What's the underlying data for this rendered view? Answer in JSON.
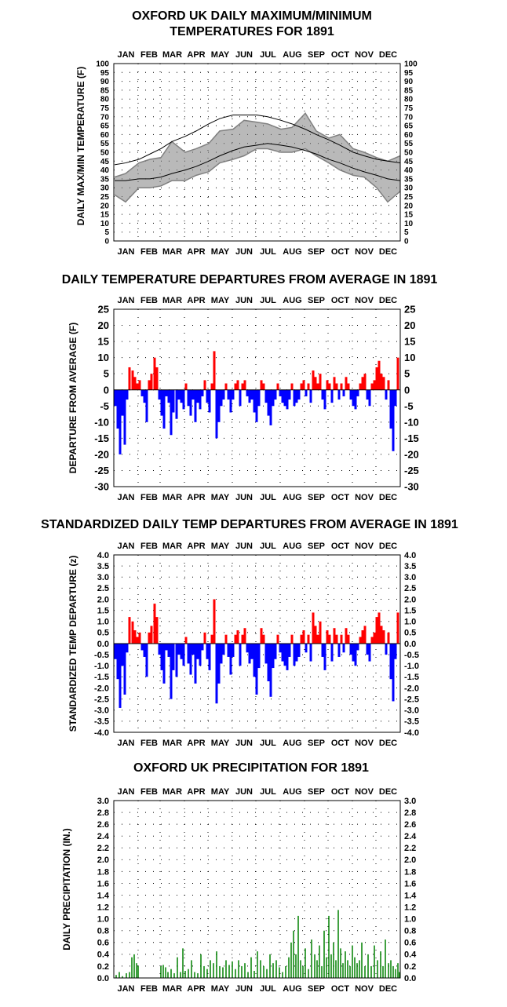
{
  "chart_data": [
    {
      "type": "line",
      "title": "OXFORD UK DAILY MAXIMUM/MINIMUM",
      "subtitle": "TEMPERATURES FOR 1891",
      "ylabel": "DAILY MAX/MIN TEMPERATURE (F)",
      "months": [
        "JAN",
        "FEB",
        "MAR",
        "APR",
        "MAY",
        "JUN",
        "JUL",
        "AUG",
        "SEP",
        "OCT",
        "NOV",
        "DEC"
      ],
      "ylim": [
        0,
        100
      ],
      "ytick_labels": [
        "0",
        "5",
        "10",
        "15",
        "20",
        "25",
        "30",
        "35",
        "40",
        "45",
        "50",
        "55",
        "60",
        "65",
        "70",
        "75",
        "80",
        "85",
        "90",
        "95",
        "100"
      ],
      "colors": {
        "observed": "#808080",
        "normals": "#000000"
      },
      "x": [
        1,
        15,
        32,
        46,
        60,
        74,
        91,
        105,
        121,
        135,
        152,
        166,
        182,
        196,
        213,
        227,
        244,
        258,
        274,
        288,
        305,
        319,
        335,
        349,
        365
      ],
      "series": [
        {
          "role": "observed_max",
          "values": [
            36,
            38,
            44,
            46,
            47,
            56,
            50,
            52,
            55,
            62,
            63,
            68,
            67,
            66,
            63,
            64,
            72,
            62,
            58,
            60,
            52,
            50,
            47,
            45,
            48
          ]
        },
        {
          "role": "observed_min",
          "values": [
            26,
            22,
            30,
            30,
            31,
            34,
            34,
            37,
            39,
            44,
            46,
            48,
            52,
            52,
            50,
            50,
            52,
            48,
            44,
            40,
            37,
            36,
            30,
            22,
            28
          ]
        },
        {
          "role": "normal_max",
          "values": [
            43,
            44,
            46,
            49,
            52,
            56,
            59,
            62,
            66,
            69,
            71,
            71,
            71,
            70,
            68,
            66,
            63,
            60,
            57,
            54,
            50,
            48,
            46,
            45,
            44
          ]
        },
        {
          "role": "normal_min",
          "values": [
            34,
            34,
            35,
            35,
            36,
            38,
            40,
            42,
            45,
            48,
            51,
            53,
            54,
            55,
            54,
            53,
            51,
            49,
            46,
            44,
            41,
            39,
            37,
            35,
            34
          ]
        }
      ]
    },
    {
      "type": "bar",
      "title": "DAILY TEMPERATURE DEPARTURES FROM AVERAGE IN 1891",
      "ylabel": "DEPARTURE FROM AVERAGE (F)",
      "months": [
        "JAN",
        "FEB",
        "MAR",
        "APR",
        "MAY",
        "JUN",
        "JUL",
        "AUG",
        "SEP",
        "OCT",
        "NOV",
        "DEC"
      ],
      "ylim": [
        -30,
        25
      ],
      "ytick_labels": [
        "-30",
        "-25",
        "-20",
        "-15",
        "-10",
        "-5",
        "0",
        "5",
        "10",
        "15",
        "20",
        "25"
      ],
      "colors": {
        "positive": "#ff0000",
        "negative": "#0000ff"
      },
      "x": [
        2,
        5,
        8,
        11,
        14,
        17,
        20,
        24,
        27,
        30,
        33,
        36,
        39,
        42,
        45,
        48,
        52,
        55,
        58,
        61,
        64,
        67,
        70,
        73,
        76,
        80,
        83,
        86,
        89,
        92,
        95,
        98,
        101,
        104,
        107,
        110,
        113,
        116,
        119,
        122,
        125,
        128,
        131,
        134,
        137,
        140,
        143,
        146,
        149,
        152,
        155,
        158,
        161,
        164,
        167,
        170,
        173,
        176,
        179,
        182,
        185,
        188,
        191,
        194,
        197,
        200,
        203,
        206,
        209,
        212,
        215,
        218,
        221,
        224,
        227,
        230,
        233,
        236,
        239,
        242,
        245,
        248,
        251,
        254,
        257,
        260,
        263,
        266,
        269,
        272,
        275,
        278,
        281,
        284,
        287,
        290,
        293,
        296,
        299,
        302,
        305,
        308,
        311,
        314,
        317,
        320,
        323,
        326,
        329,
        332,
        335,
        338,
        341,
        344,
        347,
        350,
        353,
        356,
        359,
        362
      ],
      "values": [
        -5,
        -12,
        -20,
        -8,
        -17,
        -3,
        7,
        6,
        4,
        2,
        3,
        -2,
        -4,
        -10,
        3,
        5,
        10,
        7,
        -3,
        -8,
        -12,
        -2,
        -4,
        -14,
        -7,
        -9,
        -3,
        -4,
        -6,
        2,
        -5,
        -8,
        -3,
        -10,
        -4,
        -6,
        -2,
        3,
        -4,
        -7,
        2,
        12,
        -15,
        -10,
        -5,
        -3,
        2,
        -3,
        -7,
        -3,
        2,
        3,
        -5,
        2,
        3,
        -2,
        -4,
        -3,
        -7,
        -10,
        -5,
        3,
        2,
        -4,
        -8,
        -11,
        -5,
        -3,
        2,
        -2,
        -4,
        -5,
        -6,
        -3,
        2,
        -5,
        -4,
        -3,
        2,
        3,
        -2,
        2,
        -4,
        6,
        4,
        2,
        5,
        -3,
        -6,
        3,
        2,
        -4,
        4,
        2,
        -3,
        2,
        -2,
        4,
        2,
        -3,
        -5,
        -6,
        -2,
        2,
        4,
        5,
        -3,
        -5,
        2,
        3,
        7,
        9,
        5,
        4,
        -3,
        3,
        -12,
        -19,
        -5,
        10
      ]
    },
    {
      "type": "bar",
      "title": "STANDARDIZED DAILY TEMP DEPARTURES FROM AVERAGE IN 1891",
      "ylabel": "STANDARDIZED TEMP DEPARTURE (z)",
      "months": [
        "JAN",
        "FEB",
        "MAR",
        "APR",
        "MAY",
        "JUN",
        "JUL",
        "AUG",
        "SEP",
        "OCT",
        "NOV",
        "DEC"
      ],
      "ylim": [
        -4,
        4
      ],
      "ytick_labels": [
        "-4.0",
        "-3.5",
        "-3.0",
        "-2.5",
        "-2.0",
        "-1.5",
        "-1.0",
        "-0.5",
        "0.0",
        "0.5",
        "1.0",
        "1.5",
        "2.0",
        "2.5",
        "3.0",
        "3.5",
        "4.0"
      ],
      "colors": {
        "positive": "#ff0000",
        "negative": "#0000ff"
      },
      "x": [
        2,
        5,
        8,
        11,
        14,
        17,
        20,
        24,
        27,
        30,
        33,
        36,
        39,
        42,
        45,
        48,
        52,
        55,
        58,
        61,
        64,
        67,
        70,
        73,
        76,
        80,
        83,
        86,
        89,
        92,
        95,
        98,
        101,
        104,
        107,
        110,
        113,
        116,
        119,
        122,
        125,
        128,
        131,
        134,
        137,
        140,
        143,
        146,
        149,
        152,
        155,
        158,
        161,
        164,
        167,
        170,
        173,
        176,
        179,
        182,
        185,
        188,
        191,
        194,
        197,
        200,
        203,
        206,
        209,
        212,
        215,
        218,
        221,
        224,
        227,
        230,
        233,
        236,
        239,
        242,
        245,
        248,
        251,
        254,
        257,
        260,
        263,
        266,
        269,
        272,
        275,
        278,
        281,
        284,
        287,
        290,
        293,
        296,
        299,
        302,
        305,
        308,
        311,
        314,
        317,
        320,
        323,
        326,
        329,
        332,
        335,
        338,
        341,
        344,
        347,
        350,
        353,
        356,
        359,
        362
      ],
      "values": [
        -0.7,
        -1.6,
        -2.9,
        -1.0,
        -2.3,
        -0.4,
        1.2,
        1.0,
        0.6,
        0.3,
        0.5,
        -0.3,
        -0.6,
        -1.5,
        0.5,
        0.8,
        1.8,
        1.2,
        -0.5,
        -1.2,
        -1.8,
        -0.3,
        -0.6,
        -2.5,
        -1.2,
        -1.5,
        -0.5,
        -0.7,
        -1.0,
        0.3,
        -0.9,
        -1.4,
        -0.5,
        -1.8,
        -0.7,
        -1.0,
        -0.3,
        0.5,
        -0.7,
        -1.2,
        0.4,
        2.0,
        -2.7,
        -1.8,
        -0.9,
        -0.5,
        0.4,
        -0.6,
        -1.4,
        -0.6,
        0.4,
        0.6,
        -1.0,
        0.4,
        0.7,
        -0.4,
        -0.9,
        -0.7,
        -1.5,
        -2.3,
        -1.1,
        0.7,
        0.4,
        -0.9,
        -1.7,
        -2.4,
        -1.1,
        -0.7,
        0.4,
        -0.4,
        -0.8,
        -1.0,
        -1.2,
        -0.6,
        0.4,
        -1.0,
        -0.8,
        -0.6,
        0.4,
        0.6,
        -0.4,
        0.4,
        -0.8,
        1.4,
        0.8,
        0.4,
        1.0,
        -0.6,
        -1.2,
        0.6,
        0.4,
        -0.8,
        0.7,
        0.4,
        -0.6,
        0.4,
        -0.4,
        0.7,
        0.4,
        -0.5,
        -0.8,
        -1.0,
        -0.3,
        0.3,
        0.6,
        0.8,
        -0.5,
        -0.8,
        0.3,
        0.5,
        1.2,
        1.4,
        0.8,
        0.6,
        -0.5,
        0.5,
        -1.6,
        -2.6,
        -0.7,
        1.4
      ]
    },
    {
      "type": "bar",
      "title": "OXFORD UK PRECIPITATION FOR 1891",
      "ylabel": "DAILY PRECIPITATION (IN.)",
      "months": [
        "JAN",
        "FEB",
        "MAR",
        "APR",
        "MAY",
        "JUN",
        "JUL",
        "AUG",
        "SEP",
        "OCT",
        "NOV",
        "DEC"
      ],
      "ylim": [
        0,
        3.0
      ],
      "ytick_labels": [
        "0.0",
        "0.2",
        "0.4",
        "0.6",
        "0.8",
        "1.0",
        "1.2",
        "1.4",
        "1.6",
        "1.8",
        "2.0",
        "2.2",
        "2.4",
        "2.6",
        "2.8",
        "3.0"
      ],
      "colors": {
        "bars": "#008000"
      },
      "x": [
        3,
        7,
        11,
        16,
        20,
        23,
        26,
        29,
        31,
        60,
        63,
        66,
        69,
        73,
        77,
        81,
        85,
        88,
        91,
        95,
        99,
        103,
        107,
        111,
        115,
        119,
        123,
        127,
        131,
        135,
        139,
        143,
        147,
        151,
        155,
        159,
        163,
        167,
        171,
        175,
        179,
        183,
        187,
        191,
        195,
        199,
        203,
        207,
        211,
        215,
        219,
        223,
        226,
        229,
        232,
        235,
        238,
        241,
        244,
        248,
        252,
        256,
        259,
        262,
        265,
        268,
        271,
        274,
        277,
        280,
        283,
        286,
        289,
        292,
        295,
        298,
        301,
        304,
        307,
        310,
        313,
        316,
        320,
        324,
        328,
        332,
        336,
        340,
        343,
        346,
        350,
        353,
        356,
        359,
        362,
        364
      ],
      "values": [
        0.05,
        0.1,
        0.03,
        0.08,
        0.1,
        0.35,
        0.4,
        0.25,
        0.2,
        0.2,
        0.22,
        0.18,
        0.1,
        0.15,
        0.08,
        0.35,
        0.1,
        0.5,
        0.12,
        0.15,
        0.3,
        0.1,
        0.08,
        0.4,
        0.2,
        0.15,
        0.3,
        0.25,
        0.45,
        0.2,
        0.18,
        0.3,
        0.22,
        0.28,
        0.15,
        0.3,
        0.2,
        0.25,
        0.1,
        0.35,
        0.12,
        0.45,
        0.3,
        0.2,
        0.15,
        0.4,
        0.25,
        0.3,
        0.18,
        0.1,
        0.2,
        0.35,
        0.6,
        0.8,
        0.4,
        1.05,
        0.3,
        0.2,
        0.5,
        0.15,
        0.65,
        0.4,
        0.3,
        0.55,
        0.2,
        0.8,
        0.35,
        1.05,
        0.4,
        0.6,
        0.3,
        1.15,
        0.5,
        0.25,
        0.45,
        0.3,
        0.2,
        0.55,
        0.35,
        0.25,
        0.3,
        0.6,
        0.2,
        0.4,
        0.2,
        0.55,
        0.3,
        0.45,
        0.2,
        0.65,
        0.25,
        0.3,
        0.2,
        0.15,
        0.25,
        0.1
      ]
    }
  ]
}
